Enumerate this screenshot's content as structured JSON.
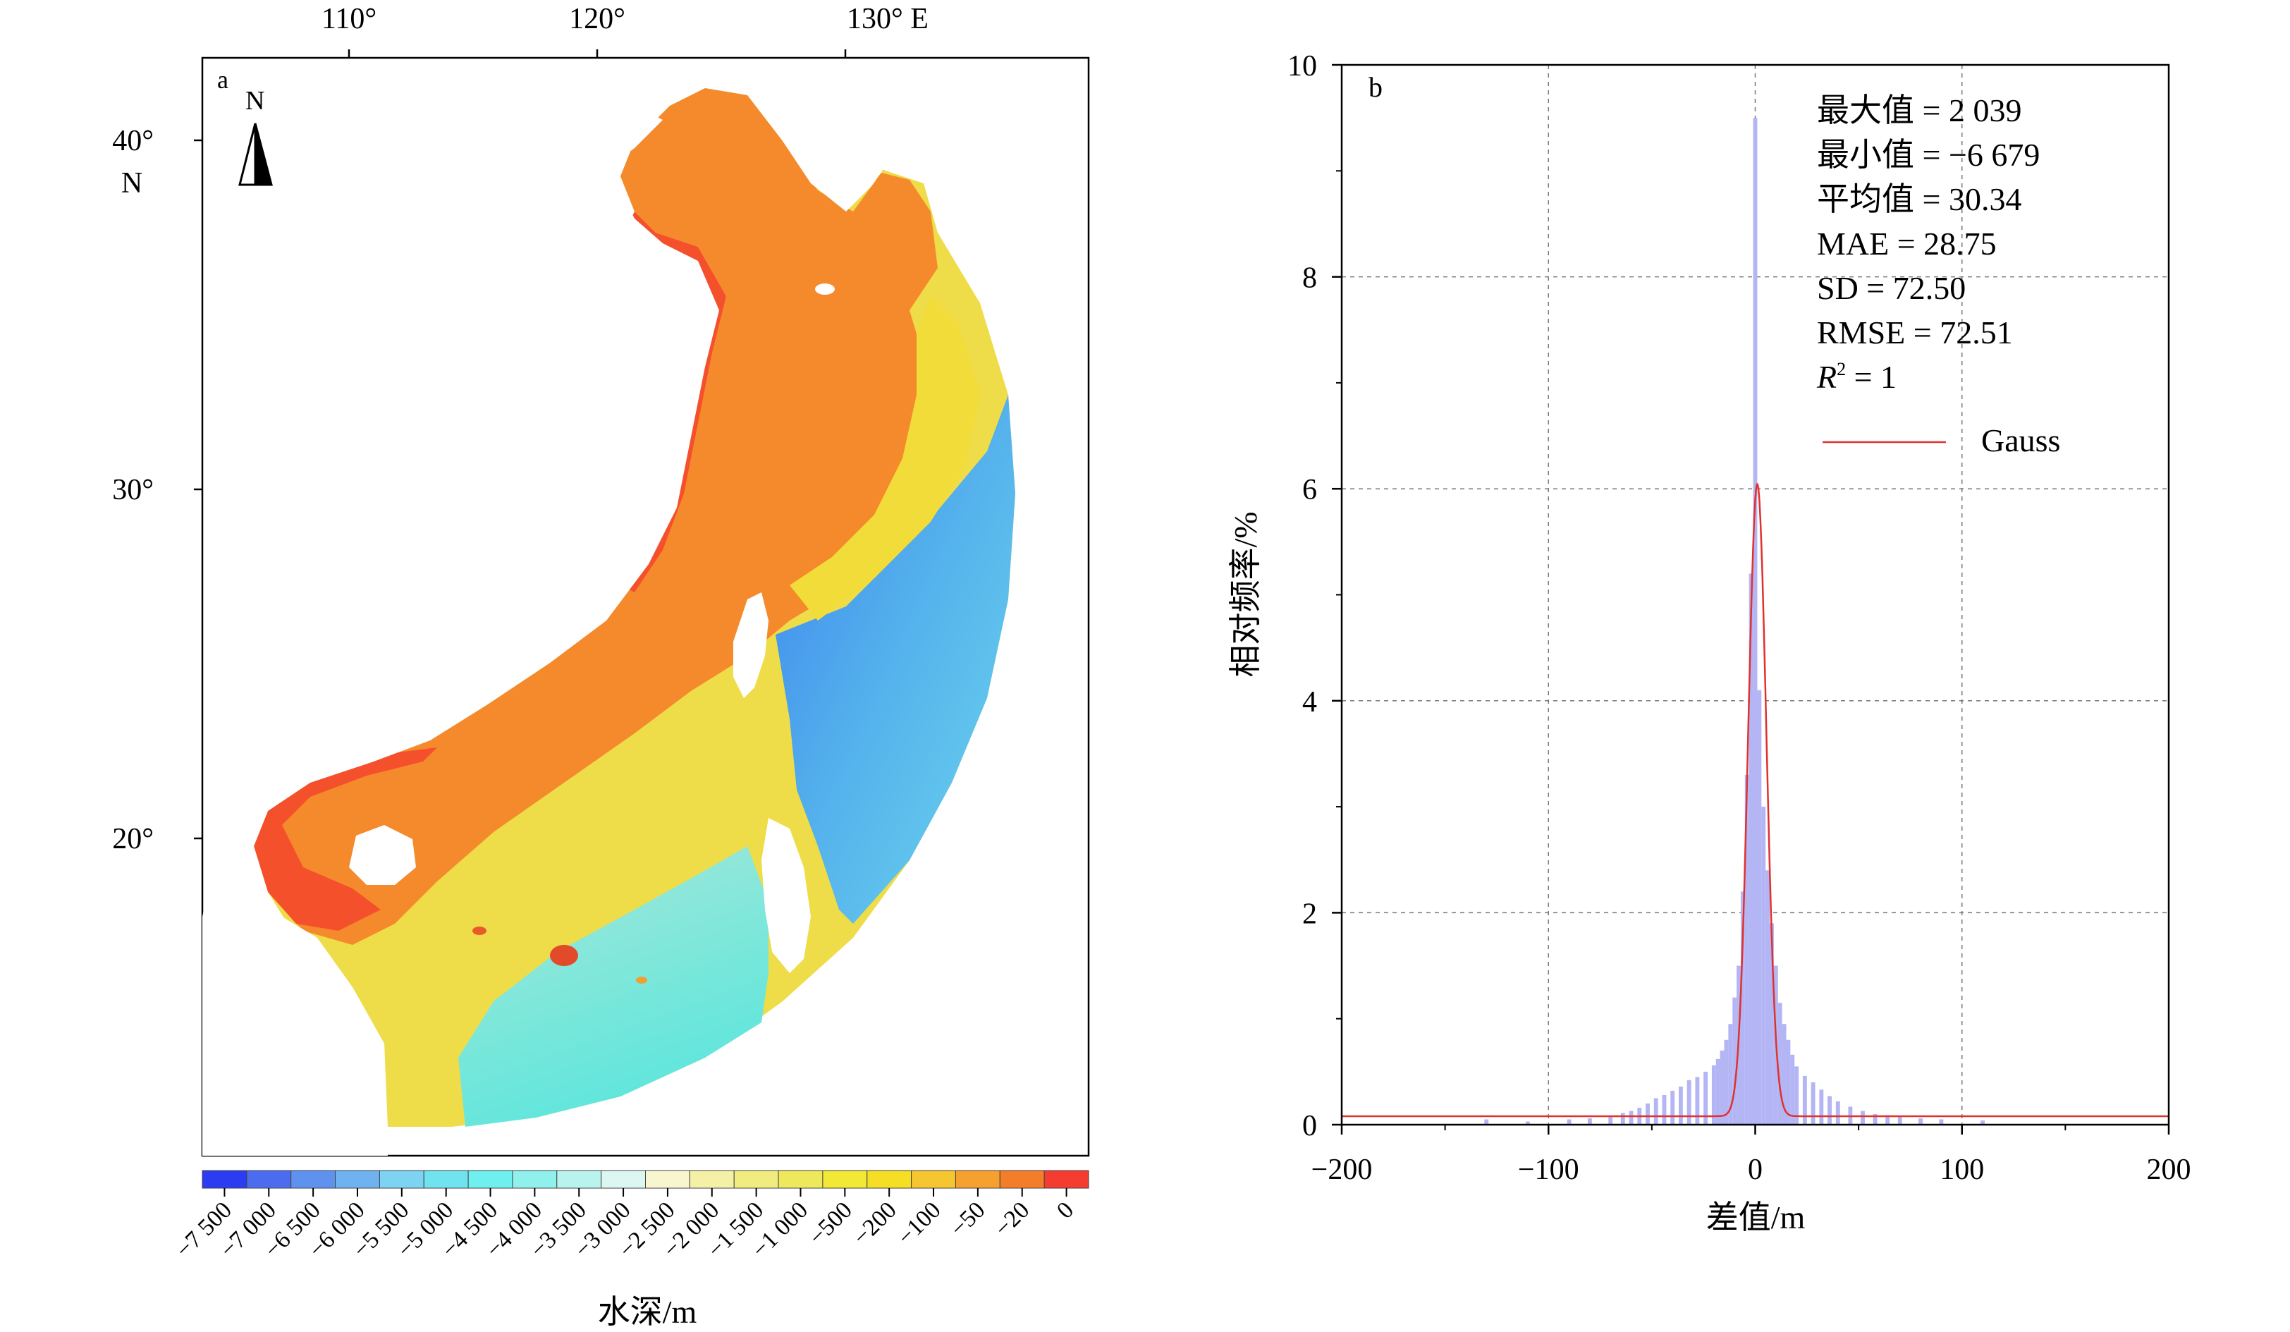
{
  "map_panel": {
    "panel_label": "a",
    "north_arrow_label": "N",
    "lon_ticks": [
      {
        "lon": 110,
        "label": "110°"
      },
      {
        "lon": 120,
        "label": "120°"
      },
      {
        "lon": 130,
        "label": "130° E"
      }
    ],
    "lat_ticks": [
      {
        "lat": 40,
        "label": "40°"
      },
      {
        "lat": 30,
        "label": "30°"
      },
      {
        "lat": 20,
        "label": "20°"
      }
    ],
    "lat_unit": "N",
    "colorbar": {
      "title": "水深/m",
      "tick_labels": [
        "−7 500",
        "−7 000",
        "−6 500",
        "−6 000",
        "−5 500",
        "−5 000",
        "−4 500",
        "−4 000",
        "−3 500",
        "−3 000",
        "−2 500",
        "−2 000",
        "−1 500",
        "−1 000",
        "−500",
        "−200",
        "−100",
        "−50",
        "−20",
        "0"
      ],
      "colors": [
        "#2c3cf2",
        "#4c6cf0",
        "#5f92ee",
        "#6fb2f0",
        "#7cd3f2",
        "#70e3ee",
        "#6ef0ee",
        "#8ff0ec",
        "#b8f3ee",
        "#dcf7f2",
        "#f8f6cf",
        "#f4f1a6",
        "#f1ec7f",
        "#eee95c",
        "#f1e934",
        "#f6de24",
        "#f6c630",
        "#f6a030",
        "#f47d2a",
        "#f43c30"
      ]
    }
  },
  "chart_data": {
    "type": "histogram",
    "panel_label": "b",
    "xlabel": "差值/m",
    "ylabel": "相对频率/%",
    "xlim": [
      -200,
      200
    ],
    "ylim": [
      0,
      10
    ],
    "x_ticks": [
      -200,
      -100,
      0,
      100,
      200
    ],
    "x_tick_labels": [
      "−200",
      "−100",
      "0",
      "100",
      "200"
    ],
    "y_ticks": [
      0,
      2,
      4,
      6,
      8,
      10
    ],
    "y_tick_labels": [
      "0",
      "2",
      "4",
      "6",
      "8",
      "10"
    ],
    "grid": true,
    "bar_color": "#b3b5f4",
    "curve_color": "#e0312f",
    "histogram": {
      "bin_width": 2,
      "bin_centers": [
        -130,
        -110,
        -90,
        -80,
        -70,
        -64,
        -60,
        -56,
        -52,
        -48,
        -44,
        -40,
        -36,
        -32,
        -28,
        -24,
        -20,
        -18,
        -16,
        -14,
        -12,
        -10,
        -8,
        -6,
        -4,
        -2,
        0,
        2,
        4,
        6,
        8,
        10,
        12,
        14,
        16,
        18,
        20,
        24,
        28,
        32,
        36,
        40,
        46,
        52,
        58,
        64,
        70,
        80,
        90,
        110
      ],
      "values": [
        0.05,
        0.03,
        0.05,
        0.06,
        0.08,
        0.11,
        0.13,
        0.16,
        0.2,
        0.25,
        0.28,
        0.32,
        0.36,
        0.42,
        0.45,
        0.5,
        0.56,
        0.62,
        0.7,
        0.8,
        0.95,
        1.2,
        1.5,
        2.2,
        3.3,
        5.2,
        9.5,
        4.1,
        3.0,
        2.4,
        1.9,
        1.5,
        1.15,
        0.95,
        0.8,
        0.66,
        0.55,
        0.46,
        0.4,
        0.33,
        0.27,
        0.22,
        0.17,
        0.13,
        0.1,
        0.09,
        0.08,
        0.06,
        0.05,
        0.04
      ]
    },
    "gauss": {
      "name": "Gauss",
      "baseline": 0.08,
      "peak": 6.05,
      "center": 1.0,
      "sigma": 4.4
    },
    "stats": [
      {
        "label": "最大值",
        "value": "2 039"
      },
      {
        "label": "最小值",
        "value": "−6 679"
      },
      {
        "label": "平均值",
        "value": "30.34"
      },
      {
        "label": "MAE",
        "value": "28.75"
      },
      {
        "label": "SD",
        "value": "72.50"
      },
      {
        "label": "RMSE",
        "value": "72.51"
      },
      {
        "label": "R",
        "sup": "2",
        "value": "1"
      }
    ],
    "legend": {
      "position": "top-right"
    }
  }
}
